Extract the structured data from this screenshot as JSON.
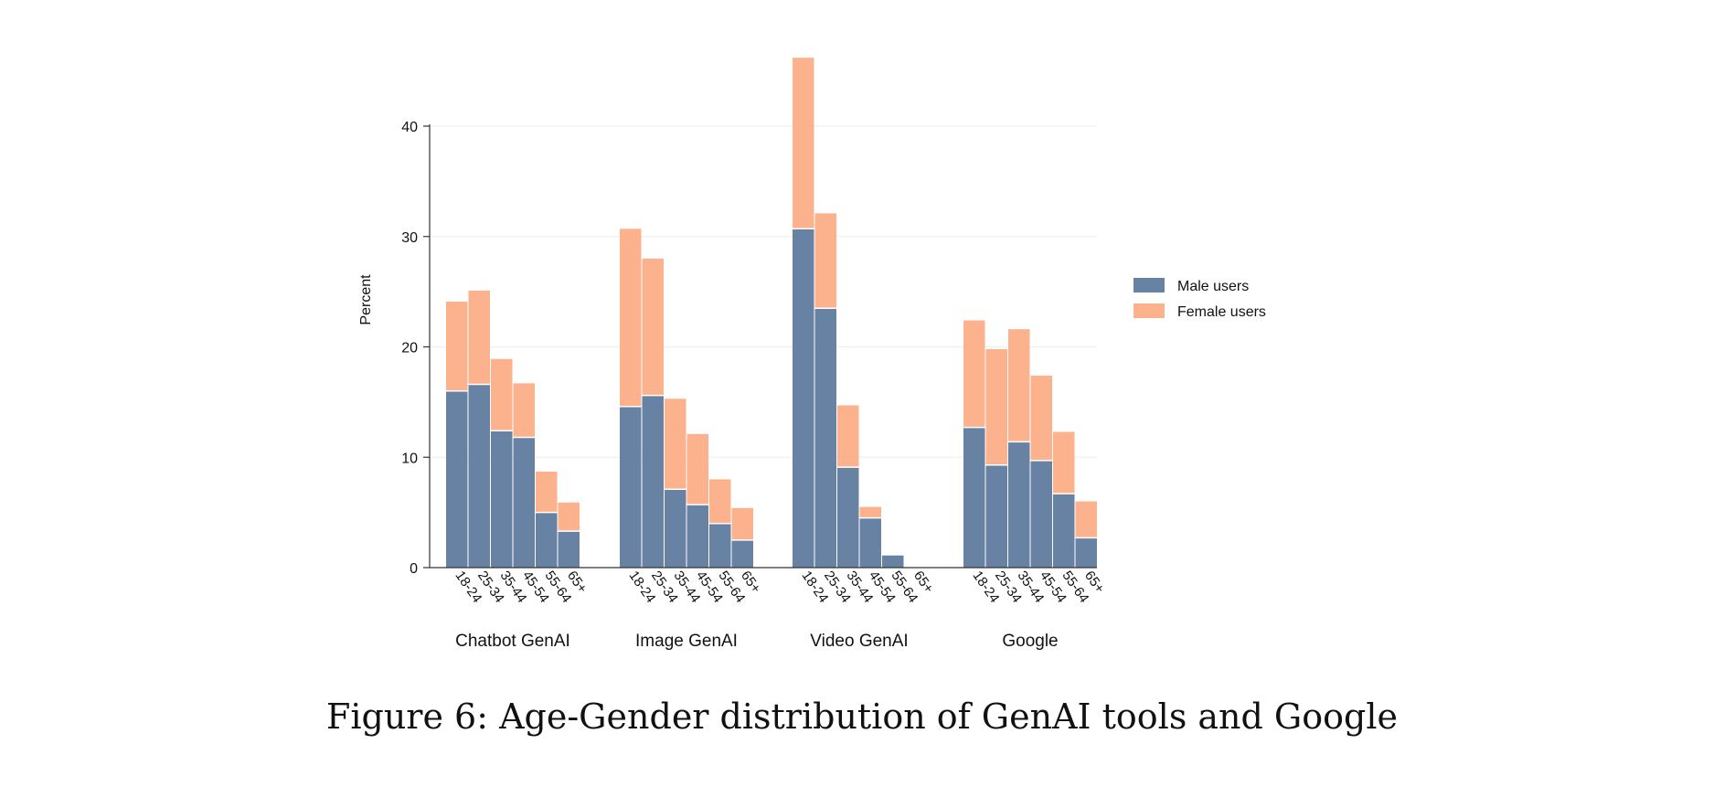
{
  "caption": "Figure 6: Age-Gender distribution of GenAI tools and Google",
  "colors": {
    "male": "#6882a3",
    "female": "#fbb28d",
    "axis": "#333333",
    "grid": "#eeeeee"
  },
  "chart_data": {
    "type": "bar",
    "stacked": true,
    "ylabel": "Percent",
    "ylim": [
      0,
      46
    ],
    "yticks": [
      0,
      10,
      20,
      30,
      40
    ],
    "age_groups": [
      "18-24",
      "25-34",
      "35-44",
      "45-54",
      "55-64",
      "65+"
    ],
    "groups": [
      {
        "label": "Chatbot GenAI",
        "male": [
          16.0,
          16.6,
          12.4,
          11.8,
          5.0,
          3.3
        ],
        "female": [
          8.1,
          8.5,
          6.5,
          4.9,
          3.7,
          2.6
        ]
      },
      {
        "label": "Image GenAI",
        "male": [
          14.6,
          15.6,
          7.1,
          5.7,
          4.0,
          2.5
        ],
        "female": [
          16.1,
          12.4,
          8.2,
          6.4,
          4.0,
          2.9
        ]
      },
      {
        "label": "Video GenAI",
        "male": [
          30.7,
          23.5,
          9.1,
          4.5,
          1.1,
          0.0
        ],
        "female": [
          15.5,
          8.6,
          5.6,
          1.0,
          0.0,
          0.0
        ]
      },
      {
        "label": "Google",
        "male": [
          12.7,
          9.3,
          11.4,
          9.7,
          6.7,
          2.7
        ],
        "female": [
          9.7,
          10.5,
          10.2,
          7.7,
          5.6,
          3.3
        ]
      }
    ],
    "legend": {
      "entries": [
        "Male users",
        "Female users"
      ],
      "position": "right"
    }
  }
}
